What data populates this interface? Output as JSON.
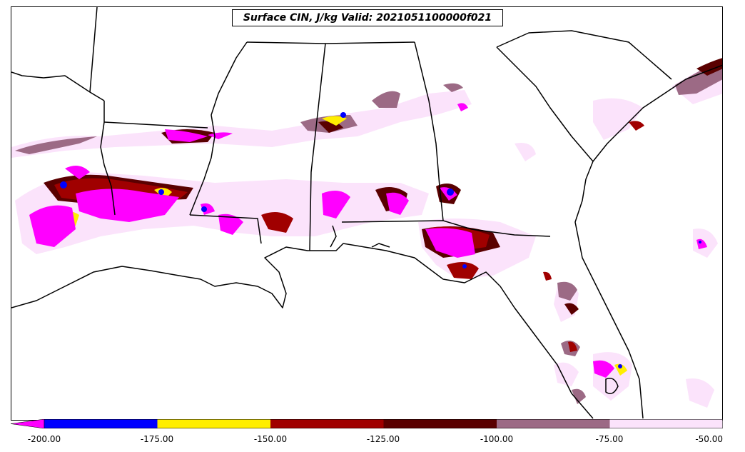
{
  "title": "Surface CIN, J/kg Valid: 2021051100000f021",
  "colorbar": {
    "ticks": [
      "-200.00",
      "-175.00",
      "-150.00",
      "-125.00",
      "-100.00",
      "-75.00",
      "-50.00"
    ],
    "extend": "min",
    "colors": {
      "below_-200": "#ff00ff",
      "-200_-175": "#0000ff",
      "-175_-150": "#ffee00",
      "-150_-125": "#a00000",
      "-125_-100": "#5a0000",
      "-100_-75": "#9c6a85",
      "-75_-50": "#fbe3fb"
    }
  },
  "map": {
    "region": "US Gulf Coast and Southeast",
    "line_color": "#000000"
  }
}
